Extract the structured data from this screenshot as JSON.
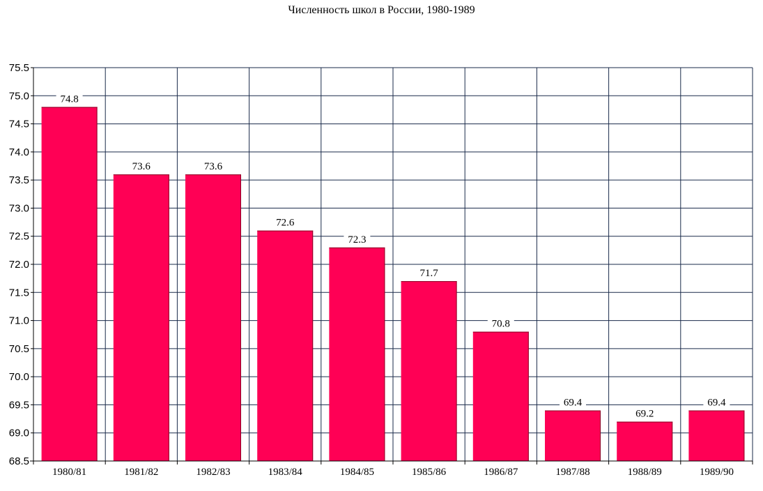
{
  "chart_data": {
    "type": "bar",
    "title": "Численность школ в России, 1980-1989",
    "xlabel": "",
    "ylabel": "",
    "categories": [
      "1980/81",
      "1981/82",
      "1982/83",
      "1983/84",
      "1984/85",
      "1985/86",
      "1986/87",
      "1987/88",
      "1988/89",
      "1989/90"
    ],
    "values": [
      74.8,
      73.6,
      73.6,
      72.6,
      72.3,
      71.7,
      70.8,
      69.4,
      69.2,
      69.4
    ],
    "data_labels": [
      "74.8",
      "73.6",
      "73.6",
      "72.6",
      "72.3",
      "71.7",
      "70.8",
      "69.4",
      "69.2",
      "69.4"
    ],
    "ylim": [
      68.5,
      75.5
    ],
    "yticks": [
      "68.5",
      "69.0",
      "69.5",
      "70.0",
      "70.5",
      "71.0",
      "71.5",
      "72.0",
      "72.5",
      "73.0",
      "73.5",
      "74.0",
      "74.5",
      "75.0",
      "75.5"
    ],
    "grid": true,
    "legend": "none",
    "colors": {
      "bar": "#ff0055",
      "bar_edge": "#880022",
      "grid": "#1a2a4a",
      "axis": "#000000"
    }
  }
}
